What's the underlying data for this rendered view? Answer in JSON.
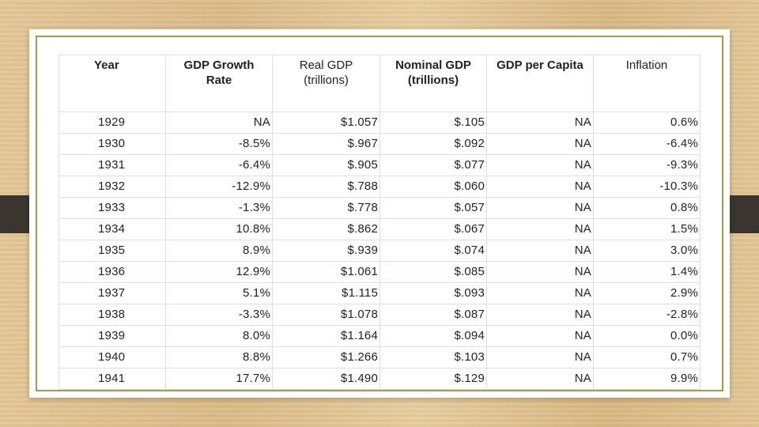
{
  "table": {
    "headers": [
      "Year",
      "GDP Growth\nRate",
      "Real GDP\n(trillions)",
      "Nominal GDP\n(trillions)",
      "GDP per Capita",
      "Inflation"
    ],
    "rows": [
      [
        "1929",
        "NA",
        "$1.057",
        "$.105",
        "NA",
        "0.6%"
      ],
      [
        "1930",
        "-8.5%",
        "$.967",
        "$.092",
        "NA",
        "-6.4%"
      ],
      [
        "1931",
        "-6.4%",
        "$.905",
        "$.077",
        "NA",
        "-9.3%"
      ],
      [
        "1932",
        "-12.9%",
        "$.788",
        "$.060",
        "NA",
        "-10.3%"
      ],
      [
        "1933",
        "-1.3%",
        "$.778",
        "$.057",
        "NA",
        "0.8%"
      ],
      [
        "1934",
        "10.8%",
        "$.862",
        "$.067",
        "NA",
        "1.5%"
      ],
      [
        "1935",
        "8.9%",
        "$.939",
        "$.074",
        "NA",
        "3.0%"
      ],
      [
        "1936",
        "12.9%",
        "$1.061",
        "$.085",
        "NA",
        "1.4%"
      ],
      [
        "1937",
        "5.1%",
        "$1.115",
        "$.093",
        "NA",
        "2.9%"
      ],
      [
        "1938",
        "-3.3%",
        "$1.078",
        "$.087",
        "NA",
        "-2.8%"
      ],
      [
        "1939",
        "8.0%",
        "$1.164",
        "$.094",
        "NA",
        "0.0%"
      ],
      [
        "1940",
        "8.8%",
        "$1.266",
        "$.103",
        "NA",
        "0.7%"
      ],
      [
        "1941",
        "17.7%",
        "$1.490",
        "$.129",
        "NA",
        "9.9%"
      ]
    ]
  },
  "colors": {
    "frame": "#8ea548",
    "background": "#dfc08c",
    "side_tab": "#3b3530"
  }
}
